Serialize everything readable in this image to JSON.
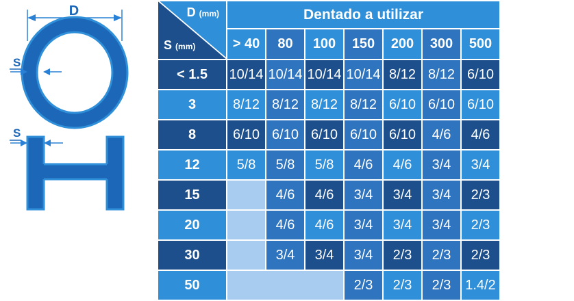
{
  "diagram": {
    "diameter_label": "D",
    "thickness_label_tube": "S",
    "thickness_label_profile": "S",
    "ring_color": "#1c67b8",
    "ring_edge": "#2f8fd8"
  },
  "table": {
    "corner": {
      "d_label": "D",
      "d_unit": "(mm)",
      "s_label": "S",
      "s_unit": "(mm)"
    },
    "title": "Dentado a utilizar",
    "columns": [
      "> 40",
      "80",
      "100",
      "150",
      "200",
      "300",
      "500"
    ],
    "rows": [
      {
        "label": "< 1.5",
        "values": [
          "10/14",
          "10/14",
          "10/14",
          "10/14",
          "8/12",
          "8/12",
          "6/10"
        ]
      },
      {
        "label": "3",
        "values": [
          "8/12",
          "8/12",
          "8/12",
          "8/12",
          "6/10",
          "6/10",
          "6/10"
        ]
      },
      {
        "label": "8",
        "values": [
          "6/10",
          "6/10",
          "6/10",
          "6/10",
          "6/10",
          "4/6",
          "4/6"
        ]
      },
      {
        "label": "12",
        "values": [
          "5/8",
          "5/8",
          "5/8",
          "4/6",
          "4/6",
          "3/4",
          "3/4"
        ]
      },
      {
        "label": "15",
        "values": [
          "",
          "4/6",
          "4/6",
          "3/4",
          "3/4",
          "3/4",
          "2/3"
        ]
      },
      {
        "label": "20",
        "values": [
          "",
          "4/6",
          "4/6",
          "3/4",
          "3/4",
          "3/4",
          "2/3"
        ]
      },
      {
        "label": "30",
        "values": [
          "",
          "3/4",
          "3/4",
          "3/4",
          "2/3",
          "2/3",
          "2/3"
        ]
      },
      {
        "label": "50",
        "values": [
          "",
          "",
          "",
          "2/3",
          "2/3",
          "2/3",
          "1.4/2"
        ]
      }
    ],
    "colors": {
      "dark": "#1c4f8c",
      "medium": "#2f74bf",
      "light": "#2f8fd8",
      "pale": "#a8ccf0"
    }
  }
}
